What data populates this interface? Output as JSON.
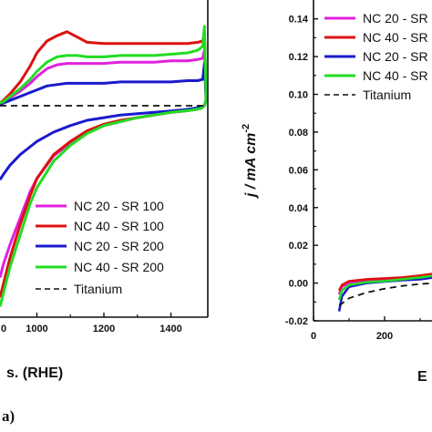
{
  "chart_data": [
    {
      "type": "line",
      "panel_label": "a)",
      "xlabel": "s. (RHE)",
      "ylabel": "",
      "xlim": [
        890,
        1510
      ],
      "ylim": [
        -1.6,
        0.8
      ],
      "xticks": [
        "1000",
        "1200",
        "1400"
      ],
      "xtick_partial": "0",
      "legend_position": "bottom-right",
      "series": [
        {
          "name": "NC 20 - SR 100",
          "color": "#e020e0",
          "dash": false,
          "x": [
            890,
            900,
            920,
            950,
            980,
            1000,
            1030,
            1060,
            1090,
            1120,
            1150,
            1200,
            1250,
            1300,
            1350,
            1400,
            1450,
            1480,
            1495,
            1500,
            1505,
            1500,
            1490,
            1470,
            1440,
            1400,
            1350,
            1300,
            1250,
            1200,
            1150,
            1100,
            1050,
            1000,
            980,
            950,
            920,
            900,
            890
          ],
          "y": [
            0.02,
            0.03,
            0.06,
            0.11,
            0.17,
            0.22,
            0.28,
            0.31,
            0.32,
            0.32,
            0.32,
            0.32,
            0.33,
            0.33,
            0.33,
            0.34,
            0.34,
            0.35,
            0.36,
            0.42,
            0.05,
            0.0,
            -0.02,
            -0.03,
            -0.04,
            -0.05,
            -0.07,
            -0.09,
            -0.12,
            -0.15,
            -0.2,
            -0.28,
            -0.38,
            -0.55,
            -0.65,
            -0.85,
            -1.05,
            -1.2,
            -1.3
          ]
        },
        {
          "name": "NC 40 - SR 100",
          "color": "#dd1111",
          "dash": false,
          "x": [
            890,
            900,
            920,
            950,
            980,
            1000,
            1030,
            1060,
            1090,
            1120,
            1150,
            1200,
            1250,
            1300,
            1350,
            1400,
            1450,
            1480,
            1495,
            1500,
            1505,
            1500,
            1490,
            1470,
            1440,
            1400,
            1350,
            1300,
            1250,
            1200,
            1150,
            1100,
            1050,
            1000,
            980,
            950,
            920,
            900,
            890
          ],
          "y": [
            0.02,
            0.04,
            0.09,
            0.18,
            0.3,
            0.4,
            0.49,
            0.53,
            0.56,
            0.52,
            0.48,
            0.47,
            0.47,
            0.47,
            0.47,
            0.47,
            0.47,
            0.48,
            0.49,
            0.55,
            0.05,
            0.0,
            -0.02,
            -0.03,
            -0.04,
            -0.05,
            -0.07,
            -0.09,
            -0.11,
            -0.14,
            -0.19,
            -0.27,
            -0.37,
            -0.55,
            -0.68,
            -0.9,
            -1.15,
            -1.35,
            -1.45
          ]
        },
        {
          "name": "NC 20 - SR 200",
          "color": "#1a1acc",
          "dash": false,
          "x": [
            890,
            900,
            920,
            950,
            980,
            1000,
            1030,
            1060,
            1090,
            1120,
            1150,
            1200,
            1250,
            1300,
            1350,
            1400,
            1450,
            1480,
            1495,
            1500,
            1505,
            1500,
            1490,
            1470,
            1440,
            1400,
            1350,
            1300,
            1250,
            1200,
            1150,
            1100,
            1050,
            1000,
            980,
            950,
            920,
            900,
            890
          ],
          "y": [
            0.01,
            0.02,
            0.04,
            0.07,
            0.1,
            0.12,
            0.15,
            0.16,
            0.17,
            0.17,
            0.17,
            0.17,
            0.18,
            0.18,
            0.18,
            0.18,
            0.19,
            0.19,
            0.2,
            0.32,
            0.04,
            0.0,
            -0.01,
            -0.02,
            -0.03,
            -0.04,
            -0.05,
            -0.06,
            -0.07,
            -0.09,
            -0.11,
            -0.15,
            -0.2,
            -0.27,
            -0.31,
            -0.37,
            -0.45,
            -0.52,
            -0.56
          ]
        },
        {
          "name": "NC 40 - SR 200",
          "color": "#22dd22",
          "dash": false,
          "x": [
            890,
            900,
            920,
            950,
            980,
            1000,
            1030,
            1060,
            1090,
            1120,
            1150,
            1200,
            1250,
            1300,
            1350,
            1400,
            1450,
            1480,
            1495,
            1500,
            1505,
            1500,
            1490,
            1470,
            1440,
            1400,
            1350,
            1300,
            1250,
            1200,
            1150,
            1100,
            1050,
            1000,
            980,
            950,
            920,
            900,
            890
          ],
          "y": [
            0.02,
            0.03,
            0.07,
            0.13,
            0.2,
            0.26,
            0.33,
            0.37,
            0.38,
            0.38,
            0.37,
            0.37,
            0.38,
            0.38,
            0.38,
            0.39,
            0.4,
            0.42,
            0.45,
            0.6,
            0.05,
            0.0,
            -0.02,
            -0.03,
            -0.04,
            -0.05,
            -0.07,
            -0.09,
            -0.12,
            -0.15,
            -0.21,
            -0.3,
            -0.42,
            -0.62,
            -0.74,
            -0.98,
            -1.22,
            -1.42,
            -1.52
          ]
        },
        {
          "name": "Titanium",
          "color": "#111111",
          "dash": true,
          "x": [
            890,
            1000,
            1200,
            1400,
            1510
          ],
          "y": [
            0.0,
            0.0,
            0.0,
            0.0,
            0.0
          ]
        }
      ]
    },
    {
      "type": "line",
      "xlabel": "E",
      "ylabel": "j / mA cm-2",
      "ylabel_parts": {
        "main": "j / mA cm",
        "sup": "-2"
      },
      "xlim": [
        0,
        500
      ],
      "ylim": [
        -0.02,
        0.15
      ],
      "yticks": [
        "-0.02",
        "0.00",
        "0.02",
        "0.04",
        "0.06",
        "0.08",
        "0.10",
        "0.12",
        "0.14"
      ],
      "ytick_values": [
        -0.02,
        0.0,
        0.02,
        0.04,
        0.06,
        0.08,
        0.1,
        0.12,
        0.14
      ],
      "xticks": [
        "0",
        "200"
      ],
      "xtick_values": [
        0,
        200
      ],
      "legend_position": "top-right",
      "series": [
        {
          "name": "NC 20 - SR",
          "color": "#e020e0",
          "dash": false,
          "x": [
            72,
            80,
            100,
            150,
            200,
            250,
            300,
            340
          ],
          "y": [
            -0.006,
            -0.002,
            0.0,
            0.001,
            0.0015,
            0.002,
            0.003,
            0.004
          ]
        },
        {
          "name": "NC 40 - SR",
          "color": "#dd1111",
          "dash": false,
          "x": [
            72,
            80,
            100,
            150,
            200,
            250,
            300,
            340
          ],
          "y": [
            -0.004,
            -0.001,
            0.001,
            0.002,
            0.0025,
            0.003,
            0.004,
            0.005
          ]
        },
        {
          "name": "NC 20 - SR",
          "color": "#1a1acc",
          "dash": false,
          "x": [
            72,
            80,
            100,
            150,
            200,
            250,
            300,
            340
          ],
          "y": [
            -0.015,
            -0.007,
            -0.002,
            0.0,
            0.0008,
            0.0015,
            0.002,
            0.003
          ]
        },
        {
          "name": "NC 40 - SR",
          "color": "#22dd22",
          "dash": false,
          "x": [
            72,
            80,
            100,
            150,
            200,
            250,
            300,
            340
          ],
          "y": [
            -0.009,
            -0.004,
            -0.001,
            0.0005,
            0.001,
            0.002,
            0.003,
            0.004
          ]
        },
        {
          "name": "Titanium",
          "color": "#111111",
          "dash": true,
          "x": [
            72,
            100,
            150,
            200,
            250,
            300,
            340
          ],
          "y": [
            -0.012,
            -0.008,
            -0.005,
            -0.003,
            -0.0015,
            -0.0005,
            0.0
          ]
        }
      ]
    }
  ]
}
